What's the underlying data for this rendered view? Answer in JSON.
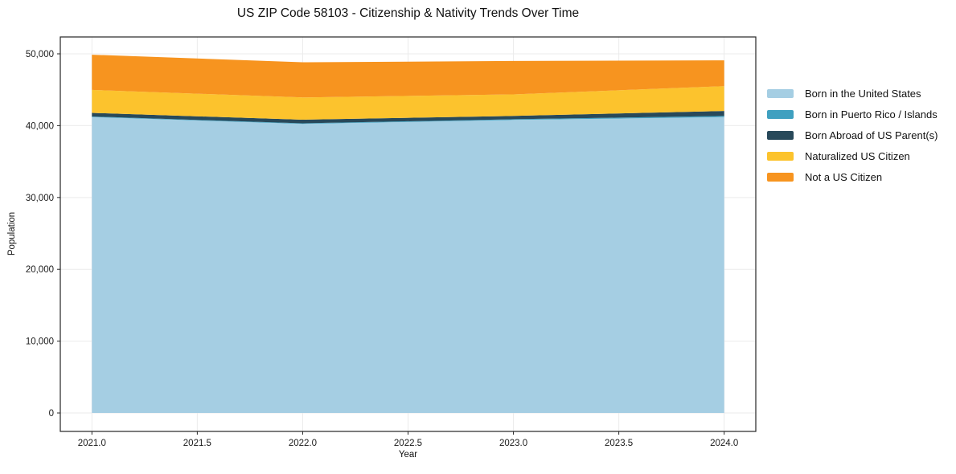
{
  "chart_data": {
    "type": "area",
    "stacked": true,
    "title": "US ZIP Code 58103 - Citizenship & Nativity Trends Over Time",
    "xlabel": "Year",
    "ylabel": "Population",
    "x": [
      2021,
      2022,
      2023,
      2024
    ],
    "series": [
      {
        "name": "Born in the United States",
        "color": "#a5cee3",
        "values": [
          41200,
          40250,
          40800,
          41200
        ]
      },
      {
        "name": "Born in Puerto Rico / Islands",
        "color": "#3fa0c0",
        "values": [
          80,
          80,
          100,
          150
        ]
      },
      {
        "name": "Born Abroad of US Parent(s)",
        "color": "#28495a",
        "values": [
          500,
          500,
          450,
          700
        ]
      },
      {
        "name": "Naturalized US Citizen",
        "color": "#fcc32d",
        "values": [
          3200,
          3100,
          3000,
          3450
        ]
      },
      {
        "name": "Not a US Citizen",
        "color": "#f7941f",
        "values": [
          4900,
          4900,
          4650,
          3600
        ]
      }
    ],
    "x_ticks": {
      "values": [
        2021,
        2021.5,
        2022,
        2022.5,
        2023,
        2023.5,
        2024
      ],
      "labels": [
        "2021.0",
        "2021.5",
        "2022.0",
        "2022.5",
        "2023.0",
        "2023.5",
        "2024.0"
      ]
    },
    "y_ticks": {
      "values": [
        0,
        10000,
        20000,
        30000,
        40000,
        50000
      ],
      "labels": [
        "0",
        "10,000",
        "20,000",
        "30,000",
        "40,000",
        "50,000"
      ]
    },
    "xlim": [
      2020.85,
      2024.15
    ],
    "ylim": [
      -2570,
      52350
    ],
    "grid": true,
    "grid_color": "#ebebeb",
    "spine_color": "#262626",
    "tick_text_color": "#1a1a1a",
    "legend": {
      "position": "outside-right",
      "frame": false
    }
  }
}
